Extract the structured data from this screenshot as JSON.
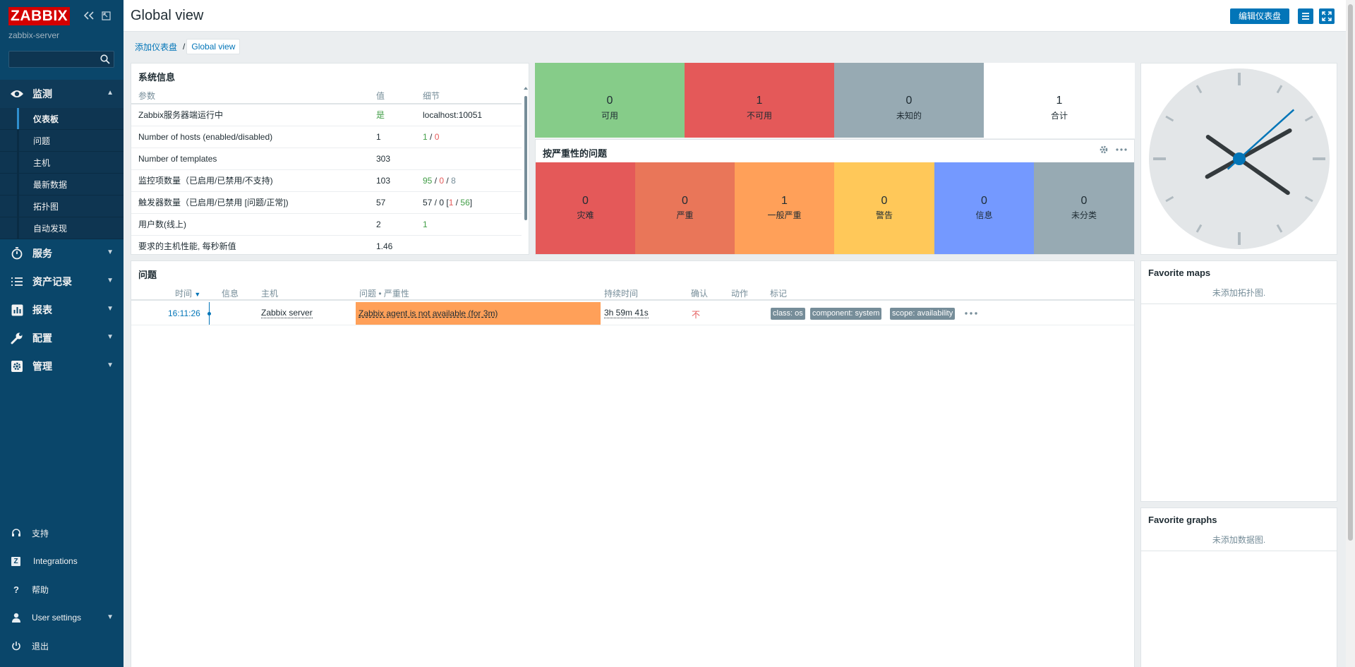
{
  "sidebar": {
    "logo": "ZABBIX",
    "server_name": "zabbix-server",
    "search_placeholder": "",
    "menu": [
      {
        "label": "监测",
        "icon": "eye-icon",
        "expanded": true
      },
      {
        "label": "服务",
        "icon": "stopwatch-icon"
      },
      {
        "label": "资产记录",
        "icon": "list-icon"
      },
      {
        "label": "报表",
        "icon": "bar-chart-icon"
      },
      {
        "label": "配置",
        "icon": "wrench-icon"
      },
      {
        "label": "管理",
        "icon": "gear-icon"
      }
    ],
    "submenu": [
      "仪表板",
      "问题",
      "主机",
      "最新数据",
      "拓扑图",
      "自动发现"
    ],
    "bottom": [
      {
        "label": "支持",
        "icon": "headset-icon"
      },
      {
        "label": "Integrations",
        "icon": "integrations-icon",
        "glyph": "Z"
      },
      {
        "label": "帮助",
        "icon": "help-icon",
        "glyph": "?"
      },
      {
        "label": "User settings",
        "icon": "user-icon"
      },
      {
        "label": "退出",
        "icon": "power-icon"
      }
    ]
  },
  "header": {
    "title": "Global view",
    "edit_button": "编辑仪表盘"
  },
  "breadcrumb": {
    "parent": "添加仪表盘",
    "separator": "/",
    "current": "Global view"
  },
  "system_info": {
    "title": "系统信息",
    "columns": [
      "参数",
      "值",
      "细节"
    ],
    "rows": [
      {
        "param": "Zabbix服务器端运行中",
        "value": "是"
      },
      {
        "param": "Number of hosts (enabled/disabled)",
        "value": "1"
      },
      {
        "param": "Number of templates",
        "value": "303"
      },
      {
        "param": "监控项数量（已启用/已禁用/不支持)",
        "value": "103"
      },
      {
        "param": "触发器数量（已启用/已禁用 [问题/正常])",
        "value": "57"
      },
      {
        "param": "用户数(线上)",
        "value": "2"
      },
      {
        "param": "要求的主机性能, 每秒新值",
        "value": "1.46"
      }
    ],
    "details": {
      "server": "localhost:10051",
      "hosts_enabled": "1",
      "hosts_disabled": "0",
      "items_enabled": "95",
      "items_disabled": "0",
      "items_unsupported": "8",
      "triggers": "57 / 0 [",
      "triggers_problem": "1",
      "triggers_ok": "56",
      "triggers_close": "]",
      "users_online": "1",
      "slash": "/"
    }
  },
  "host_availability": [
    {
      "count": "0",
      "label": "可用",
      "color": "#86cc89"
    },
    {
      "count": "1",
      "label": "不可用",
      "color": "#e45959"
    },
    {
      "count": "0",
      "label": "未知的",
      "color": "#97aab3"
    },
    {
      "count": "1",
      "label": "合计",
      "color": "#ffffff"
    }
  ],
  "problems_by_severity": {
    "title": "按严重性的问题",
    "items": [
      {
        "count": "0",
        "label": "灾难",
        "color": "#e45959"
      },
      {
        "count": "0",
        "label": "严重",
        "color": "#e97659"
      },
      {
        "count": "1",
        "label": "一般严重",
        "color": "#ffa059"
      },
      {
        "count": "0",
        "label": "警告",
        "color": "#ffc859"
      },
      {
        "count": "0",
        "label": "信息",
        "color": "#7499ff"
      },
      {
        "count": "0",
        "label": "未分类",
        "color": "#97aab3"
      }
    ]
  },
  "problems": {
    "title": "问题",
    "columns": {
      "time": "时间",
      "sort_icon": "▼",
      "info": "信息",
      "host": "主机",
      "problem": "问题 • 严重性",
      "duration": "持续时间",
      "ack": "确认",
      "actions": "动作",
      "tags": "标记"
    },
    "rows": [
      {
        "time": "16:11:26",
        "host": "Zabbix server",
        "problem": "Zabbix agent is not available (for 3m)",
        "duration": "3h 59m 41s",
        "ack": "不",
        "tags": [
          "class: os",
          "component: system",
          "scope: availability"
        ]
      }
    ]
  },
  "favorite_maps": {
    "title": "Favorite maps",
    "empty": "未添加拓扑图."
  },
  "favorite_graphs": {
    "title": "Favorite graphs",
    "empty": "未添加数据图."
  },
  "clock": {
    "hour": 16,
    "minute": 10,
    "second": 8
  },
  "colors": {
    "sidebar": "#0a466a",
    "accent": "#0275b8"
  }
}
